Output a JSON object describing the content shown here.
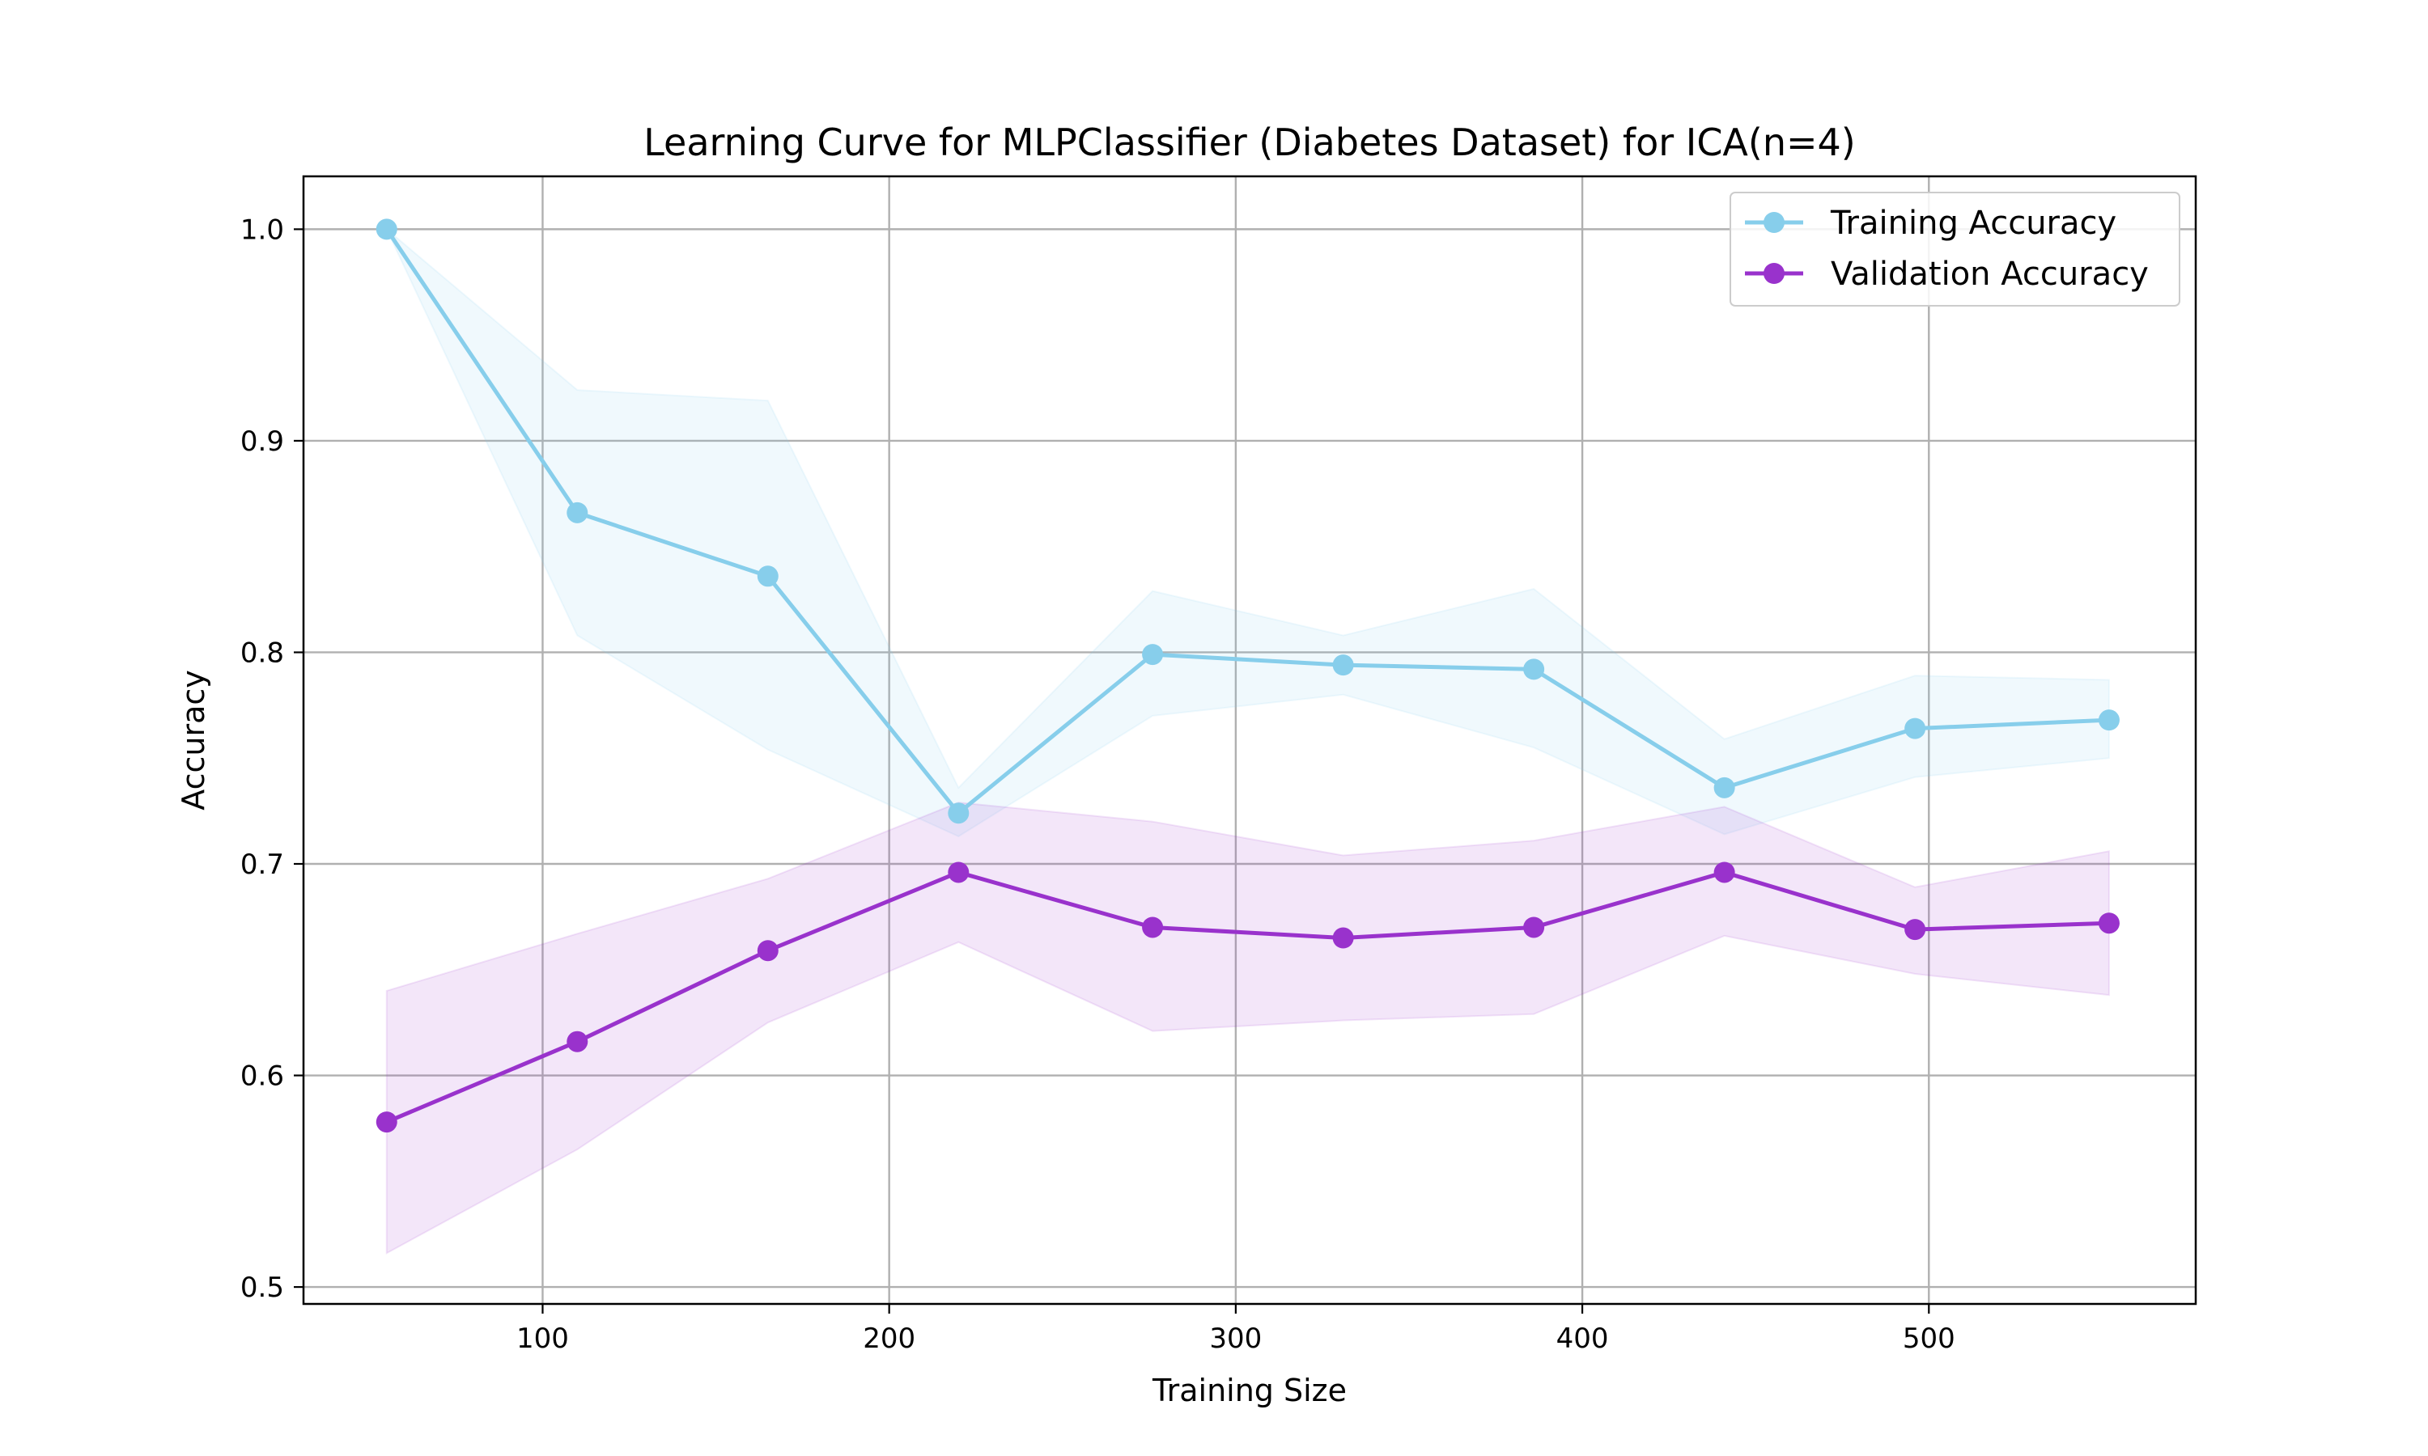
{
  "chart_data": {
    "type": "line",
    "title": "Learning Curve for MLPClassifier (Diabetes Dataset) for ICA(n=4)",
    "xlabel": "Training Size",
    "ylabel": "Accuracy",
    "xlim": [
      31,
      577
    ],
    "ylim": [
      0.492,
      1.025
    ],
    "xticks": [
      100,
      200,
      300,
      400,
      500
    ],
    "yticks": [
      0.5,
      0.6,
      0.7,
      0.8,
      0.9,
      1.0
    ],
    "ytick_labels": [
      "0.5",
      "0.6",
      "0.7",
      "0.8",
      "0.9",
      "1.0"
    ],
    "grid": true,
    "legend_position": "upper-right",
    "x": [
      55,
      110,
      165,
      220,
      276,
      331,
      386,
      441,
      496,
      552
    ],
    "series": [
      {
        "name": "Training Accuracy",
        "color": "#87ceeb",
        "values": [
          1.0,
          0.866,
          0.836,
          0.724,
          0.799,
          0.794,
          0.792,
          0.736,
          0.764,
          0.768
        ],
        "band_upper": [
          1.0,
          0.924,
          0.919,
          0.736,
          0.829,
          0.808,
          0.83,
          0.759,
          0.789,
          0.787
        ],
        "band_lower": [
          1.0,
          0.808,
          0.754,
          0.713,
          0.77,
          0.78,
          0.755,
          0.714,
          0.741,
          0.75
        ]
      },
      {
        "name": "Validation Accuracy",
        "color": "#9932cc",
        "values": [
          0.578,
          0.616,
          0.659,
          0.696,
          0.67,
          0.665,
          0.67,
          0.696,
          0.669,
          0.672
        ],
        "band_upper": [
          0.64,
          0.667,
          0.693,
          0.729,
          0.72,
          0.704,
          0.711,
          0.727,
          0.689,
          0.706
        ],
        "band_lower": [
          0.516,
          0.565,
          0.625,
          0.663,
          0.621,
          0.626,
          0.629,
          0.666,
          0.648,
          0.638
        ]
      }
    ]
  }
}
